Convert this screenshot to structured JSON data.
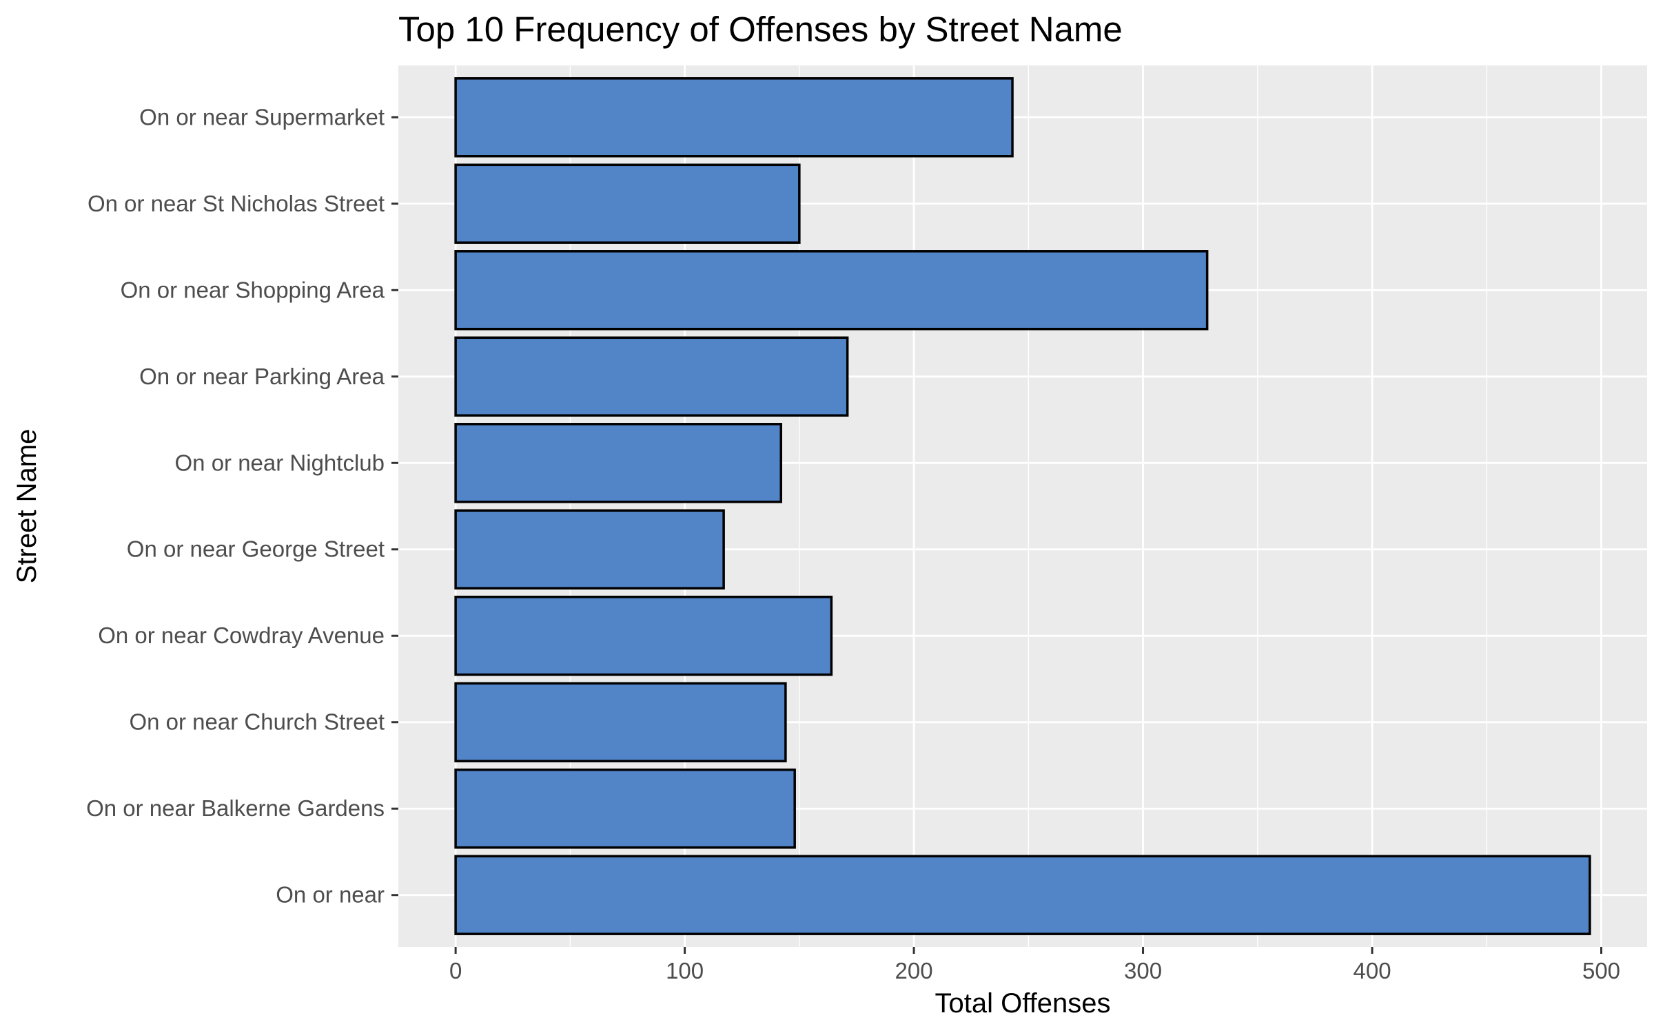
{
  "chart_data": {
    "type": "bar",
    "orientation": "horizontal",
    "title": "Top 10 Frequency of Offenses by Street Name",
    "xlabel": "Total Offenses",
    "ylabel": "Street Name",
    "categories": [
      "On or near ",
      "On or near Balkerne Gardens",
      "On or near Church Street",
      "On or near Cowdray Avenue",
      "On or near George Street",
      "On or near Nightclub",
      "On or near Parking Area",
      "On or near Shopping Area",
      "On or near St Nicholas Street",
      "On or near Supermarket"
    ],
    "values": [
      495,
      148,
      144,
      164,
      117,
      142,
      171,
      328,
      150,
      243
    ],
    "xlim": [
      -25,
      520
    ],
    "xticks": [
      0,
      100,
      200,
      300,
      400,
      500
    ],
    "grid": true,
    "colors": {
      "panel_background": "#ebebeb",
      "grid": "#ffffff",
      "bar_fill": "#5284c8",
      "bar_outline": "#000000"
    }
  }
}
